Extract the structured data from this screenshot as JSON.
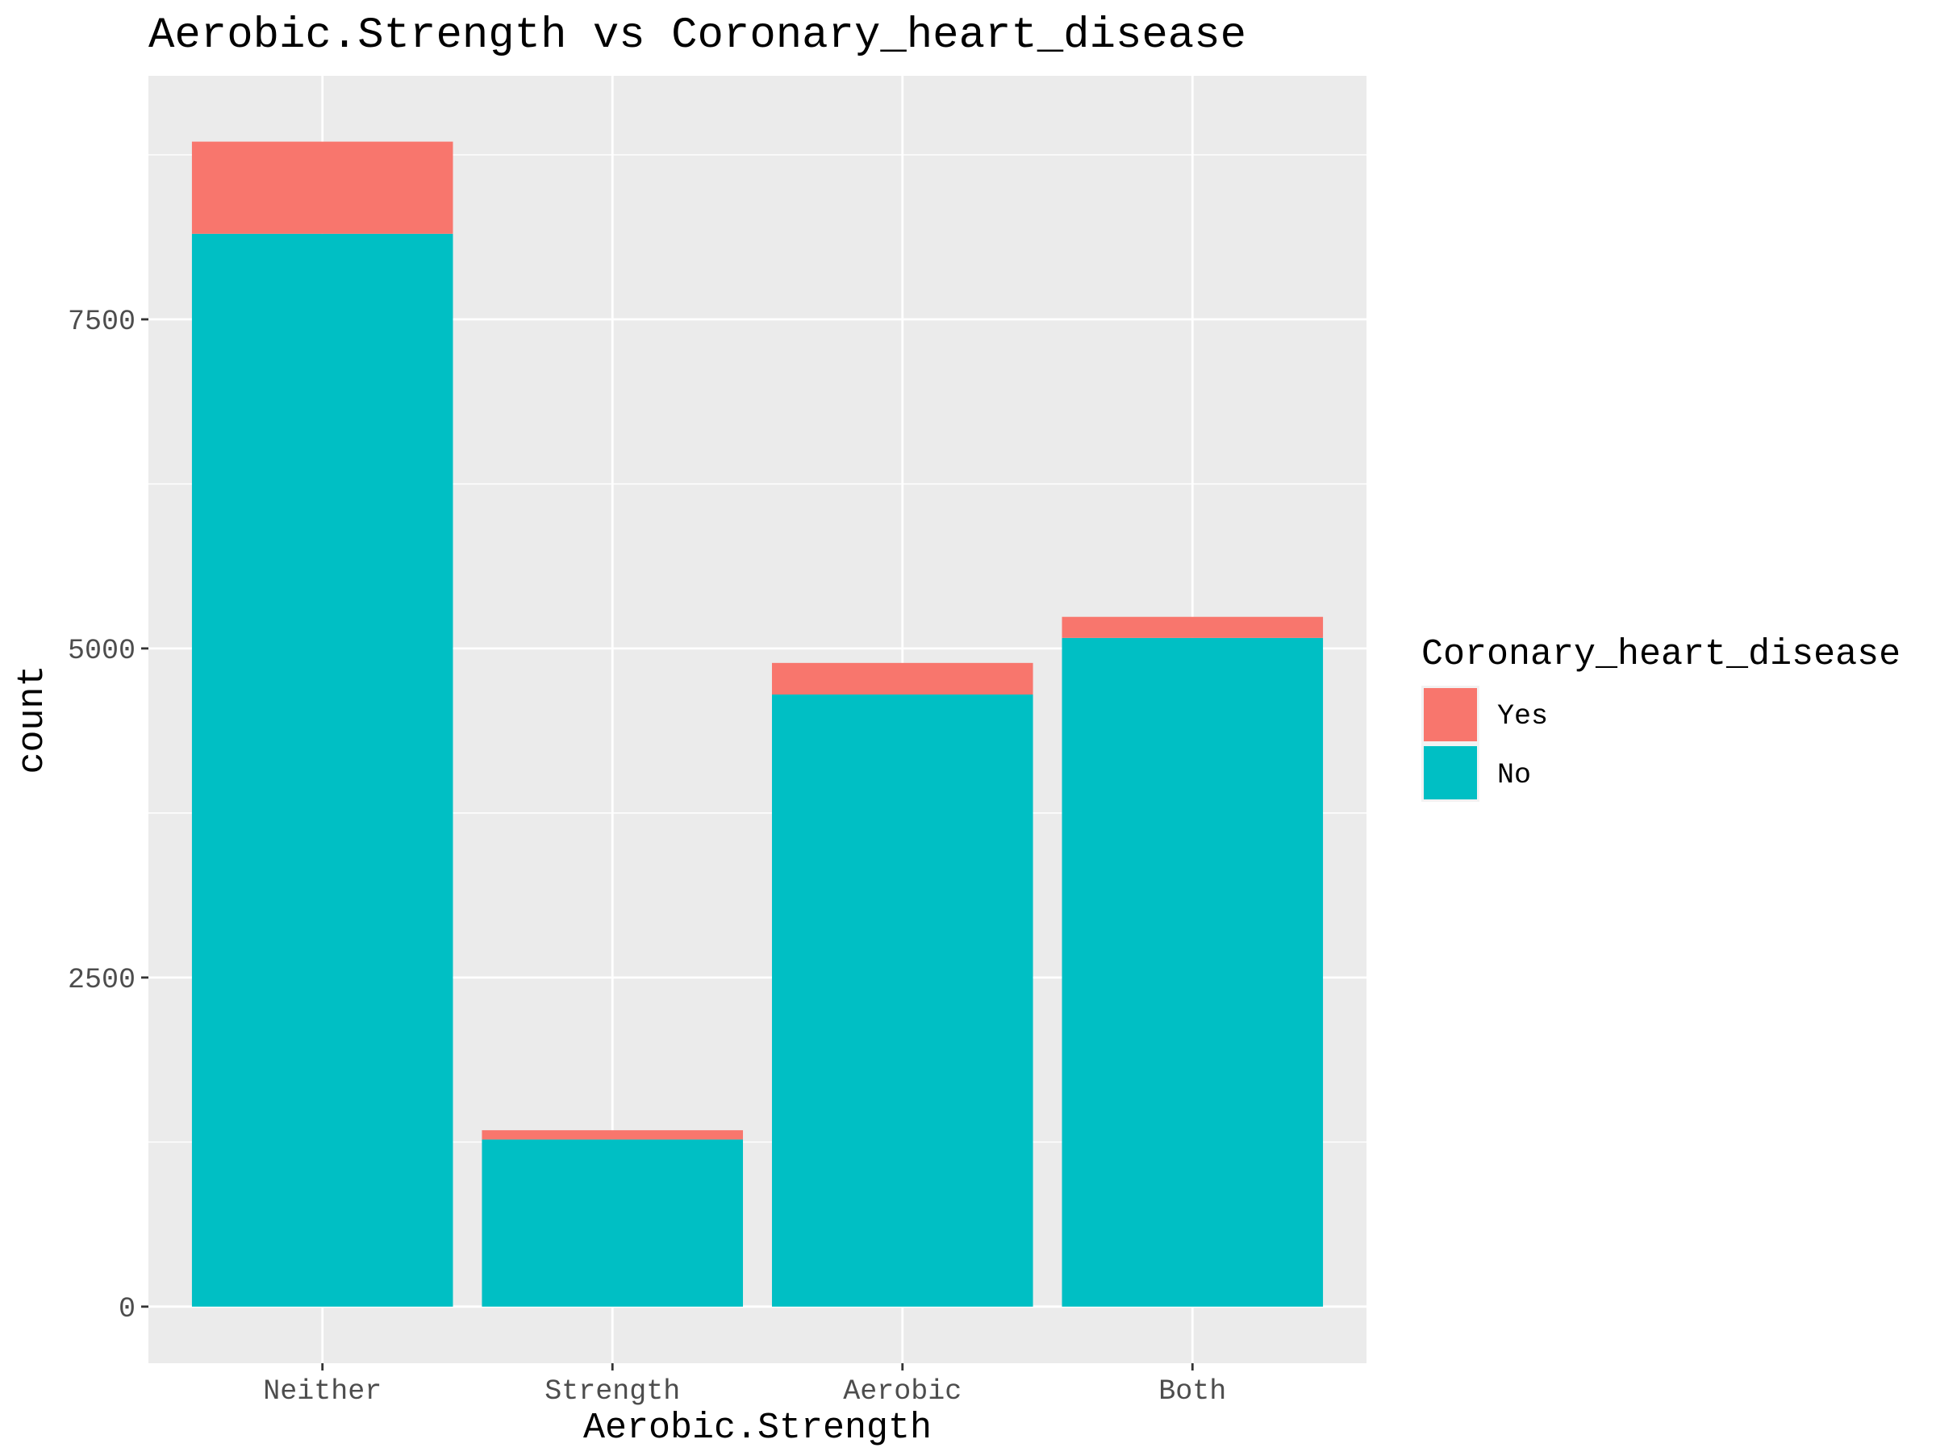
{
  "chart_data": {
    "type": "bar",
    "stacked": true,
    "title": "Aerobic.Strength vs Coronary_heart_disease",
    "xlabel": "Aerobic.Strength",
    "ylabel": "count",
    "categories": [
      "Neither",
      "Strength",
      "Aerobic",
      "Both"
    ],
    "series": [
      {
        "name": "No",
        "color": "#00BFC4",
        "values": [
          8150,
          1270,
          4650,
          5080
        ]
      },
      {
        "name": "Yes",
        "color": "#F8766D",
        "values": [
          700,
          70,
          240,
          160
        ]
      }
    ],
    "ylim": [
      -430,
      9350
    ],
    "yticks": [
      0,
      2500,
      5000,
      7500
    ],
    "grid": true,
    "background": "#EBEBEB",
    "legend": {
      "title": "Coronary_heart_disease",
      "position": "right",
      "items": [
        {
          "label": "Yes",
          "color": "#F8766D"
        },
        {
          "label": "No",
          "color": "#00BFC4"
        }
      ]
    }
  }
}
